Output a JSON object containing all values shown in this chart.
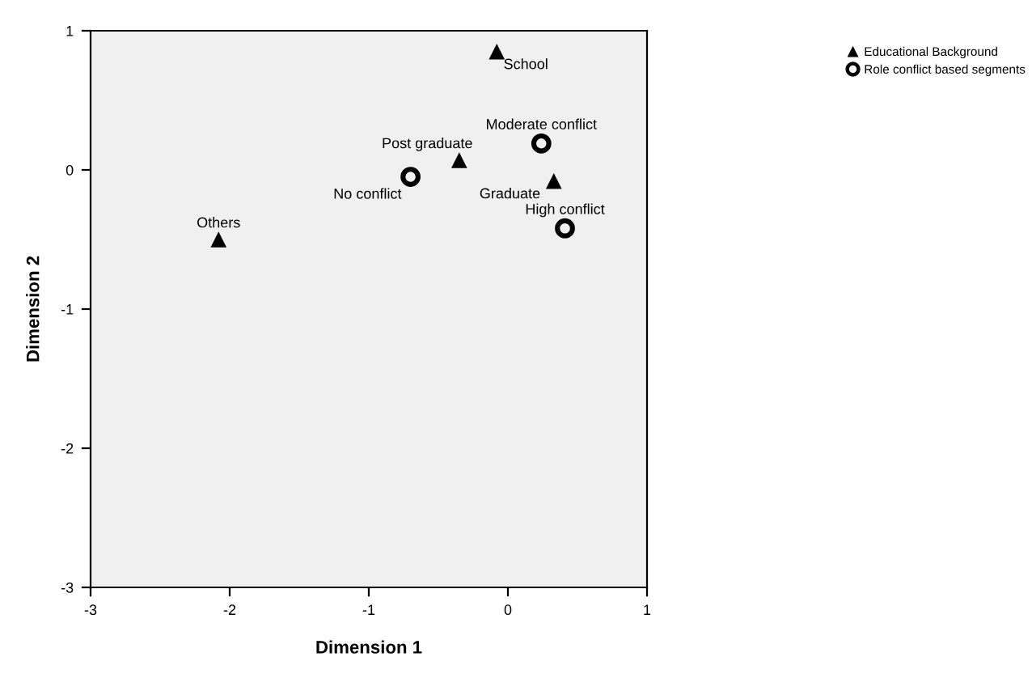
{
  "chart_data": {
    "type": "scatter",
    "xlabel": "Dimension 1",
    "ylabel": "Dimension 2",
    "xlim": [
      -3,
      1
    ],
    "ylim": [
      -3,
      1
    ],
    "xticks": [
      -3,
      -2,
      -1,
      0,
      1
    ],
    "yticks": [
      -3,
      -2,
      -1,
      0,
      1
    ],
    "grid": false,
    "legend": "top right",
    "series": [
      {
        "name": "Educational Background",
        "color": "#000000",
        "marker": "triangle",
        "x": [
          -0.08,
          -0.35,
          0.33,
          -2.08
        ],
        "values": [
          0.85,
          0.07,
          -0.08,
          -0.5
        ]
      },
      {
        "name": "Role conflict based segments",
        "color": "#000000",
        "marker": "circle",
        "x": [
          -0.7,
          0.24,
          0.41
        ],
        "values": [
          -0.05,
          0.19,
          -0.42
        ]
      }
    ],
    "annotations": [
      {
        "text": "School",
        "x": -0.08,
        "y": 0.85
      },
      {
        "text": "Post graduate",
        "x": -0.35,
        "y": 0.07
      },
      {
        "text": "Graduate",
        "x": 0.33,
        "y": -0.08
      },
      {
        "text": "Others",
        "x": -2.08,
        "y": -0.5
      },
      {
        "text": "No conflict",
        "x": -0.7,
        "y": -0.05
      },
      {
        "text": "Moderate conflict",
        "x": 0.24,
        "y": 0.19
      },
      {
        "text": "High conflict",
        "x": 0.41,
        "y": -0.42
      }
    ]
  }
}
